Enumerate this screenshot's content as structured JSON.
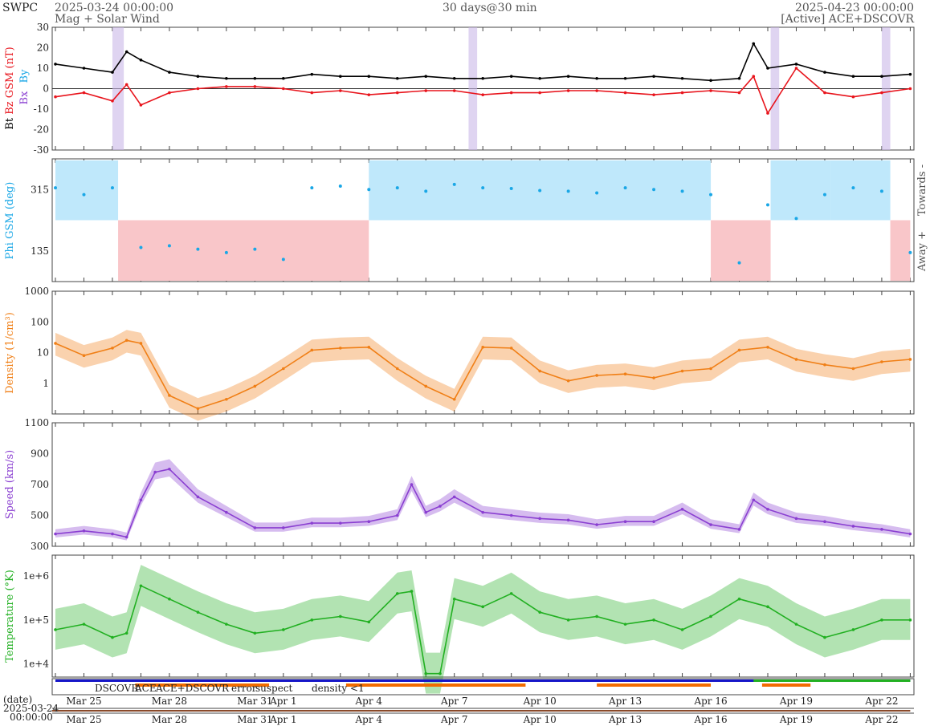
{
  "header": {
    "org": "SWPC",
    "start": "2025-03-24 00:00:00",
    "subtitle": "Mag + Solar Wind",
    "resolution": "30 days@30 min",
    "end": "2025-04-23 00:00:00",
    "source": "[Active] ACE+DSCOVR"
  },
  "colors": {
    "bt": "#000000",
    "bz": "#e8141c",
    "phi": "#1aa7e6",
    "phi_toward_bg": "#bfe8fb",
    "phi_away_bg": "#f9c6c9",
    "density": "#f07f16",
    "speed": "#8a3fd1",
    "temperature": "#22b022",
    "dscovr": "#1616c8",
    "ace": "#22b022",
    "ace_dscovr": "#d41ee0",
    "error": "#d81b1b",
    "suspect": "#f2b700",
    "density_lt1": "#f26b00"
  },
  "date_labels": [
    "Mar 25",
    "Mar 28",
    "Mar 31",
    "Apr 1",
    "Apr 4",
    "Apr 7",
    "Apr 10",
    "Apr 13",
    "Apr 16",
    "Apr 19",
    "Apr 22"
  ],
  "legend": {
    "dscovr": "DSCOVR",
    "ace": "ACE",
    "ace_dscovr": "ACE+DSCOVR",
    "error": "error",
    "suspect": "suspect",
    "density_lt1": "density <1"
  },
  "footer": {
    "date_label": "(date)",
    "date_value": "2025-03-24",
    "time_value": "00:00:00"
  },
  "chart_data": [
    {
      "type": "line",
      "panel": "mag",
      "ylabel_parts": [
        "Bt",
        "Bz GSM (nT)"
      ],
      "legend_markers": [
        "Bx",
        "By"
      ],
      "ylim": [
        -30,
        30
      ],
      "yticks": [
        -30,
        -20,
        -10,
        0,
        10,
        20,
        30
      ],
      "x_days": [
        0,
        1,
        2,
        2.5,
        3,
        4,
        5,
        6,
        7,
        8,
        9,
        10,
        11,
        12,
        13,
        14,
        15,
        16,
        17,
        18,
        19,
        20,
        21,
        22,
        23,
        24,
        24.5,
        25,
        26,
        27,
        28,
        29,
        30
      ],
      "series": [
        {
          "key": "bt",
          "values": [
            12,
            10,
            8,
            18,
            14,
            8,
            6,
            5,
            5,
            5,
            7,
            6,
            6,
            5,
            6,
            5,
            5,
            6,
            5,
            6,
            5,
            5,
            6,
            5,
            4,
            5,
            22,
            10,
            12,
            8,
            6,
            6,
            7
          ]
        },
        {
          "key": "bz",
          "values": [
            -4,
            -2,
            -6,
            2,
            -8,
            -2,
            0,
            1,
            1,
            0,
            -2,
            -1,
            -3,
            -2,
            -1,
            -1,
            -3,
            -2,
            -2,
            -1,
            -1,
            -2,
            -3,
            -2,
            -1,
            -2,
            6,
            -12,
            10,
            -2,
            -4,
            -2,
            0
          ]
        }
      ]
    },
    {
      "type": "scatter",
      "panel": "phi",
      "ylabel": "Phi GSM (deg)",
      "side_labels": [
        "Towards -",
        "Away +"
      ],
      "ylim": [
        45,
        405
      ],
      "yticks": [
        135,
        315
      ],
      "x_days": [
        0,
        1,
        2,
        3,
        4,
        5,
        6,
        7,
        8,
        9,
        10,
        11,
        12,
        13,
        14,
        15,
        16,
        17,
        18,
        19,
        20,
        21,
        22,
        23,
        24,
        25,
        26,
        27,
        28,
        29,
        30
      ],
      "values": [
        320,
        300,
        320,
        145,
        150,
        140,
        130,
        140,
        110,
        320,
        325,
        315,
        320,
        310,
        330,
        320,
        318,
        312,
        310,
        305,
        320,
        315,
        310,
        300,
        100,
        270,
        230,
        300,
        320,
        310,
        130
      ]
    },
    {
      "type": "line",
      "panel": "density",
      "ylabel": "Density (1/cm³)",
      "yscale": "log",
      "ylim": [
        0.1,
        1000
      ],
      "yticks": [
        1,
        10,
        100,
        1000
      ],
      "x_days": [
        0,
        1,
        2,
        2.5,
        3,
        4,
        5,
        6,
        7,
        8,
        9,
        10,
        11,
        12,
        13,
        14,
        15,
        16,
        17,
        18,
        19,
        20,
        21,
        22,
        23,
        24,
        25,
        26,
        27,
        28,
        29,
        30
      ],
      "values": [
        20,
        8,
        14,
        25,
        20,
        0.4,
        0.15,
        0.3,
        0.8,
        3,
        12,
        14,
        15,
        3,
        0.8,
        0.3,
        15,
        14,
        2.5,
        1.2,
        1.8,
        2,
        1.5,
        2.5,
        3,
        12,
        15,
        6,
        4,
        3,
        5,
        6
      ]
    },
    {
      "type": "line",
      "panel": "speed",
      "ylabel": "Speed (km/s)",
      "ylim": [
        300,
        1100
      ],
      "yticks": [
        300,
        500,
        700,
        900,
        1100
      ],
      "x_days": [
        0,
        1,
        2,
        2.5,
        3,
        3.5,
        4,
        5,
        6,
        7,
        8,
        9,
        10,
        11,
        12,
        12.5,
        13,
        13.5,
        14,
        15,
        16,
        17,
        18,
        19,
        20,
        21,
        22,
        23,
        24,
        24.5,
        25,
        26,
        27,
        28,
        29,
        30
      ],
      "values": [
        380,
        400,
        380,
        360,
        600,
        780,
        800,
        620,
        520,
        420,
        420,
        450,
        450,
        460,
        500,
        700,
        520,
        560,
        620,
        520,
        500,
        480,
        470,
        440,
        460,
        460,
        540,
        440,
        410,
        600,
        540,
        480,
        460,
        430,
        410,
        380
      ]
    },
    {
      "type": "line",
      "panel": "temperature",
      "ylabel": "Temperature (°K)",
      "yscale": "log",
      "ylim": [
        5000,
        3000000
      ],
      "yticks": [
        "1e+4",
        "1e+5",
        "1e+6"
      ],
      "x_days": [
        0,
        1,
        2,
        2.5,
        3,
        4,
        5,
        6,
        7,
        8,
        9,
        10,
        11,
        12,
        12.5,
        13,
        13.5,
        14,
        15,
        16,
        17,
        18,
        19,
        20,
        21,
        22,
        23,
        24,
        25,
        26,
        27,
        28,
        29,
        30
      ],
      "values": [
        60000,
        80000,
        40000,
        50000,
        600000,
        300000,
        150000,
        80000,
        50000,
        60000,
        100000,
        120000,
        90000,
        400000,
        450000,
        6000,
        6000,
        300000,
        200000,
        400000,
        150000,
        100000,
        120000,
        80000,
        100000,
        60000,
        120000,
        300000,
        200000,
        80000,
        40000,
        60000,
        100000,
        100000
      ]
    }
  ]
}
